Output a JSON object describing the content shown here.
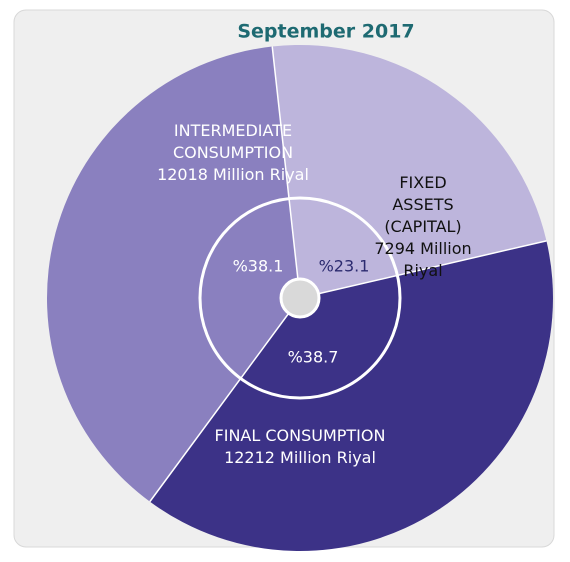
{
  "chart_data": {
    "type": "pie",
    "title": "September 2017",
    "categories": [
      "FIXED ASSETS (CAPITAL)",
      "FINAL CONSUMPTION",
      "INTERMEDIATE CONSUMPTION"
    ],
    "amount_labels": [
      "7294 Million Riyal",
      "12212 Million Riyal",
      "12018 Million Riyal"
    ],
    "values": [
      23.1,
      38.7,
      38.1
    ],
    "value_labels": [
      "%23.1",
      "%38.7",
      "%38.1"
    ],
    "colors": [
      "#bdb5dc",
      "#3c3287",
      "#8a80bf"
    ]
  }
}
